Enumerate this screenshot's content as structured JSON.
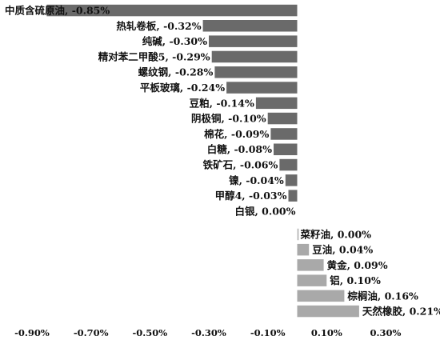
{
  "chart_data": {
    "type": "bar",
    "orientation": "horizontal",
    "title": "",
    "xlabel": "",
    "ylabel": "",
    "xlim": [
      -0.9,
      0.4
    ],
    "x_ticks": [
      -0.9,
      -0.7,
      -0.5,
      -0.3,
      -0.1,
      0.1,
      0.3
    ],
    "x_tick_labels": [
      "-0.90%",
      "-0.70%",
      "-0.50%",
      "-0.30%",
      "-0.10%",
      "0.10%",
      "0.30%"
    ],
    "grid": false,
    "legend": "none",
    "colors": {
      "negative": "#6a6a6a",
      "positive": "#a9a9a9"
    },
    "bars": [
      {
        "name": "中质含硫原油",
        "value": -0.85,
        "label": "中质含硫原油, -0.85%"
      },
      {
        "name": "热轧卷板",
        "value": -0.32,
        "label": "热轧卷板, -0.32%"
      },
      {
        "name": "纯碱",
        "value": -0.3,
        "label": "纯碱, -0.30%"
      },
      {
        "name": "精对苯二甲酸5",
        "value": -0.29,
        "label": "精对苯二甲酸5, -0.29%"
      },
      {
        "name": "螺纹钢",
        "value": -0.28,
        "label": "螺纹钢, -0.28%"
      },
      {
        "name": "平板玻璃",
        "value": -0.24,
        "label": "平板玻璃, -0.24%"
      },
      {
        "name": "豆粕",
        "value": -0.14,
        "label": "豆粕, -0.14%"
      },
      {
        "name": "阴极铜",
        "value": -0.1,
        "label": "阴极铜, -0.10%"
      },
      {
        "name": "棉花",
        "value": -0.09,
        "label": "棉花, -0.09%"
      },
      {
        "name": "白糖",
        "value": -0.08,
        "label": "白糖, -0.08%"
      },
      {
        "name": "铁矿石",
        "value": -0.06,
        "label": "铁矿石, -0.06%"
      },
      {
        "name": "镍",
        "value": -0.04,
        "label": "镍, -0.04%"
      },
      {
        "name": "甲醇4",
        "value": -0.03,
        "label": "甲醇4, -0.03%"
      },
      {
        "name": "白银",
        "value": -0.0,
        "label": "白银, 0.00%"
      },
      {
        "name": "菜籽油",
        "value": 0.0,
        "label": "菜籽油, 0.00%"
      },
      {
        "name": "豆油",
        "value": 0.04,
        "label": "豆油, 0.04%"
      },
      {
        "name": "黄金",
        "value": 0.09,
        "label": "黄金, 0.09%"
      },
      {
        "name": "铝",
        "value": 0.1,
        "label": "铝, 0.10%"
      },
      {
        "name": "棕榈油",
        "value": 0.16,
        "label": "棕榈油, 0.16%"
      },
      {
        "name": "天然橡胶",
        "value": 0.21,
        "label": "天然橡胶, 0.21%"
      }
    ]
  }
}
